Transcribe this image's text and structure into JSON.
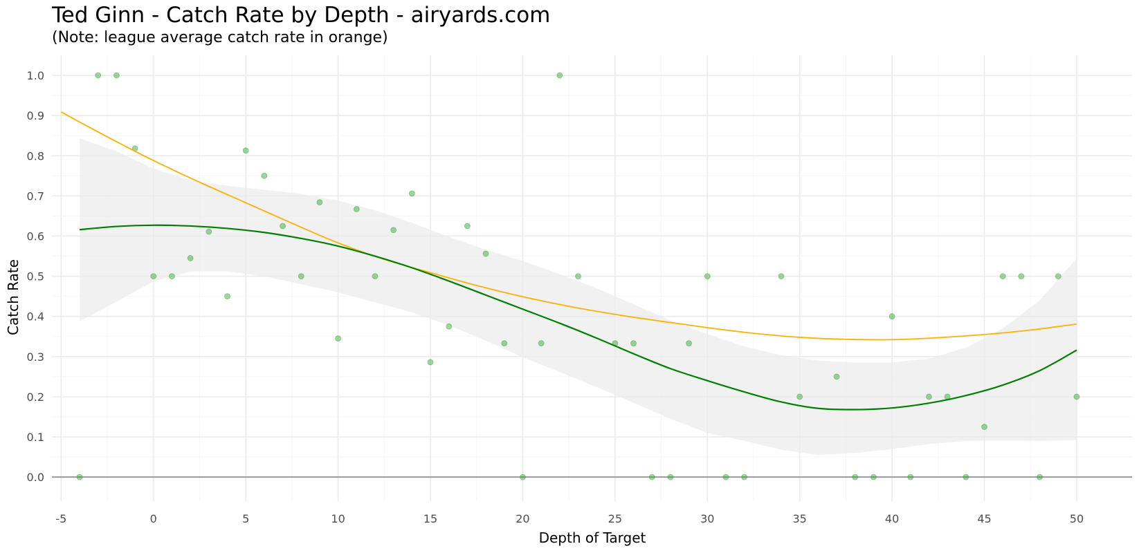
{
  "chart_data": {
    "type": "scatter",
    "title": "Ted Ginn - Catch Rate by Depth - airyards.com",
    "subtitle": "(Note: league average catch rate in orange)",
    "xlabel": "Depth of Target",
    "ylabel": "Catch Rate",
    "xlim": [
      -5.5,
      53
    ],
    "ylim": [
      -0.06,
      1.05
    ],
    "x_ticks": [
      -5,
      0,
      5,
      10,
      15,
      20,
      25,
      30,
      35,
      40,
      45,
      50
    ],
    "y_ticks": [
      0.0,
      0.1,
      0.2,
      0.3,
      0.4,
      0.5,
      0.6,
      0.7,
      0.8,
      0.9,
      1.0
    ],
    "x_tick_labels": [
      "-5",
      "0",
      "5",
      "10",
      "15",
      "20",
      "25",
      "30",
      "35",
      "40",
      "45",
      "50"
    ],
    "y_tick_labels": [
      "0.0",
      "0.1",
      "0.2",
      "0.3",
      "0.4",
      "0.5",
      "0.6",
      "0.7",
      "0.8",
      "0.9",
      "1.0"
    ],
    "grid": true,
    "colors": {
      "points": "#2ca02c",
      "player_smooth": "#008000",
      "league_average": "#ffb000",
      "confidence_band": "#ebebeb",
      "zero_line": "#999999",
      "grid": "#ebebeb"
    },
    "points": [
      {
        "x": -4,
        "y": 0.0
      },
      {
        "x": -3,
        "y": 1.0
      },
      {
        "x": -2,
        "y": 1.0
      },
      {
        "x": -1,
        "y": 0.818
      },
      {
        "x": 0,
        "y": 0.5
      },
      {
        "x": 1,
        "y": 0.5
      },
      {
        "x": 2,
        "y": 0.545
      },
      {
        "x": 3,
        "y": 0.611
      },
      {
        "x": 4,
        "y": 0.45
      },
      {
        "x": 5,
        "y": 0.813
      },
      {
        "x": 6,
        "y": 0.75
      },
      {
        "x": 7,
        "y": 0.625
      },
      {
        "x": 8,
        "y": 0.5
      },
      {
        "x": 9,
        "y": 0.684
      },
      {
        "x": 10,
        "y": 0.345
      },
      {
        "x": 11,
        "y": 0.667
      },
      {
        "x": 12,
        "y": 0.5
      },
      {
        "x": 13,
        "y": 0.615
      },
      {
        "x": 14,
        "y": 0.706
      },
      {
        "x": 15,
        "y": 0.286
      },
      {
        "x": 16,
        "y": 0.375
      },
      {
        "x": 17,
        "y": 0.625
      },
      {
        "x": 18,
        "y": 0.556
      },
      {
        "x": 19,
        "y": 0.333
      },
      {
        "x": 20,
        "y": 0.0
      },
      {
        "x": 21,
        "y": 0.333
      },
      {
        "x": 22,
        "y": 1.0
      },
      {
        "x": 23,
        "y": 0.5
      },
      {
        "x": 25,
        "y": 0.333
      },
      {
        "x": 26,
        "y": 0.333
      },
      {
        "x": 27,
        "y": 0.0
      },
      {
        "x": 28,
        "y": 0.0
      },
      {
        "x": 29,
        "y": 0.333
      },
      {
        "x": 30,
        "y": 0.5
      },
      {
        "x": 31,
        "y": 0.0
      },
      {
        "x": 32,
        "y": 0.0
      },
      {
        "x": 34,
        "y": 0.5
      },
      {
        "x": 35,
        "y": 0.2
      },
      {
        "x": 37,
        "y": 0.25
      },
      {
        "x": 38,
        "y": 0.0
      },
      {
        "x": 39,
        "y": 0.0
      },
      {
        "x": 40,
        "y": 0.4
      },
      {
        "x": 41,
        "y": 0.0
      },
      {
        "x": 42,
        "y": 0.2
      },
      {
        "x": 43,
        "y": 0.2
      },
      {
        "x": 44,
        "y": 0.0
      },
      {
        "x": 45,
        "y": 0.125
      },
      {
        "x": 46,
        "y": 0.5
      },
      {
        "x": 47,
        "y": 0.5
      },
      {
        "x": 48,
        "y": 0.0
      },
      {
        "x": 49,
        "y": 0.5
      },
      {
        "x": 50,
        "y": 0.2
      }
    ],
    "player_smooth": {
      "x": [
        -4,
        -2,
        0,
        2,
        4,
        6,
        8,
        10,
        12,
        14,
        16,
        18,
        20,
        22,
        24,
        26,
        28,
        30,
        32,
        34,
        36,
        38,
        40,
        42,
        44,
        46,
        48,
        50
      ],
      "y": [
        0.616,
        0.624,
        0.627,
        0.625,
        0.619,
        0.609,
        0.594,
        0.575,
        0.55,
        0.521,
        0.488,
        0.453,
        0.418,
        0.383,
        0.346,
        0.307,
        0.27,
        0.24,
        0.212,
        0.187,
        0.171,
        0.168,
        0.172,
        0.184,
        0.203,
        0.229,
        0.265,
        0.316
      ]
    },
    "player_smooth_ci": {
      "x": [
        -4,
        -2,
        0,
        2,
        4,
        6,
        8,
        10,
        12,
        14,
        16,
        18,
        20,
        22,
        24,
        26,
        28,
        30,
        32,
        34,
        36,
        38,
        40,
        42,
        44,
        46,
        48,
        50
      ],
      "lower": [
        0.388,
        0.437,
        0.487,
        0.512,
        0.512,
        0.5,
        0.48,
        0.46,
        0.435,
        0.41,
        0.378,
        0.34,
        0.298,
        0.262,
        0.224,
        0.185,
        0.145,
        0.11,
        0.09,
        0.068,
        0.055,
        0.06,
        0.07,
        0.082,
        0.09,
        0.091,
        0.09,
        0.092
      ],
      "upper": [
        0.843,
        0.811,
        0.768,
        0.739,
        0.725,
        0.715,
        0.705,
        0.688,
        0.664,
        0.633,
        0.598,
        0.566,
        0.538,
        0.505,
        0.47,
        0.43,
        0.39,
        0.356,
        0.325,
        0.303,
        0.29,
        0.285,
        0.285,
        0.295,
        0.322,
        0.37,
        0.44,
        0.545
      ]
    },
    "league_average": {
      "x": [
        -5,
        -2.5,
        0,
        2.5,
        5,
        7.5,
        10,
        12.5,
        15,
        17.5,
        20,
        22.5,
        25,
        27.5,
        30,
        32.5,
        35,
        37.5,
        40,
        42.5,
        45,
        47.5,
        50
      ],
      "y": [
        0.909,
        0.847,
        0.788,
        0.734,
        0.683,
        0.632,
        0.583,
        0.542,
        0.509,
        0.477,
        0.449,
        0.425,
        0.405,
        0.388,
        0.372,
        0.358,
        0.348,
        0.343,
        0.342,
        0.347,
        0.355,
        0.366,
        0.381
      ]
    }
  }
}
